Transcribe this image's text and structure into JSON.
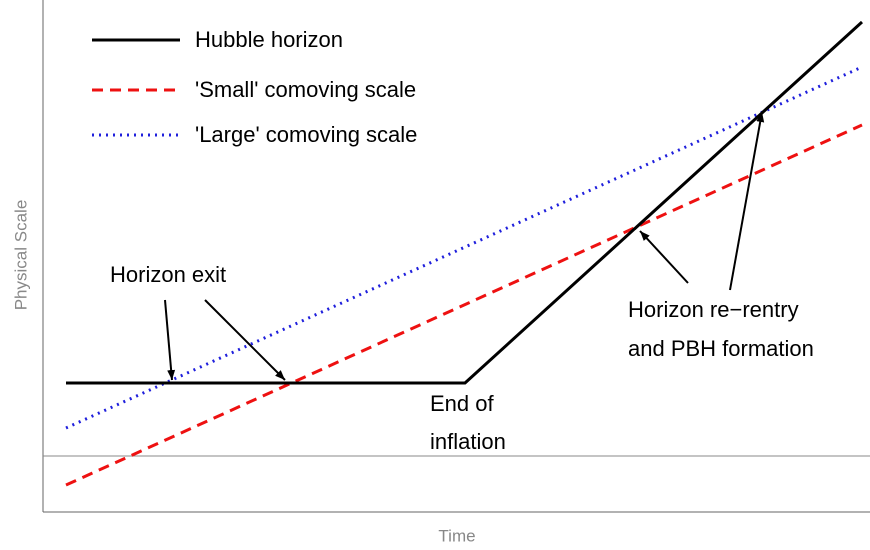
{
  "legend": {
    "items": [
      {
        "label": "Hubble horizon"
      },
      {
        "label": "'Small' comoving scale"
      },
      {
        "label": "'Large' comoving scale"
      }
    ]
  },
  "annotations": {
    "horizon_exit": {
      "lines": [
        "Horizon exit"
      ]
    },
    "end_of_inflation": {
      "lines": [
        "End of",
        "inflation"
      ]
    },
    "reentry": {
      "lines": [
        "Horizon re−rentry",
        "and PBH formation"
      ]
    }
  },
  "axes": {
    "y_label": "Physical Scale",
    "x_label": "Time"
  }
}
